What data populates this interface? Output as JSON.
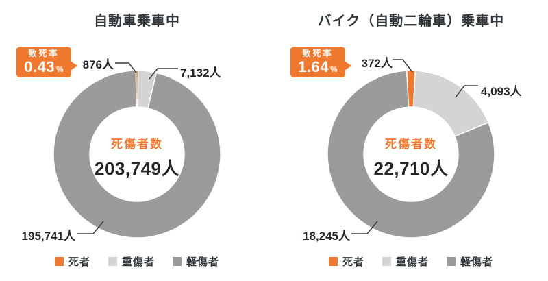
{
  "page": {
    "background": "#ffffff"
  },
  "colors": {
    "accent_orange": "#EF7A2F",
    "serious_gray": "#D4D4D4",
    "light_injury_gray": "#9B9B9B",
    "text_dark": "#33383D",
    "number_black": "#22262A"
  },
  "charts": [
    {
      "title": "自動車乗車中",
      "badge": {
        "label": "致死率",
        "rate": "0.43",
        "unit": "%"
      },
      "center": {
        "label": "死傷者数",
        "value": "203,749人"
      },
      "labels": [
        "876人",
        "7,132人",
        "195,741人"
      ],
      "legend": [
        {
          "label": "死者",
          "color": "#EF7A2F"
        },
        {
          "label": "重傷者",
          "color": "#D4D4D4"
        },
        {
          "label": "軽傷者",
          "color": "#9B9B9B"
        }
      ]
    },
    {
      "title": "バイク（自動二輪車）乗車中",
      "badge": {
        "label": "致死率",
        "rate": "1.64",
        "unit": "%"
      },
      "center": {
        "label": "死傷者数",
        "value": "22,710人"
      },
      "labels": [
        "372人",
        "4,093人",
        "18,245人"
      ],
      "legend": [
        {
          "label": "死者",
          "color": "#EF7A2F"
        },
        {
          "label": "重傷者",
          "color": "#D4D4D4"
        },
        {
          "label": "軽傷者",
          "color": "#9B9B9B"
        }
      ]
    }
  ],
  "chart_data": [
    {
      "type": "pie",
      "subtype": "donut",
      "title": "自動車乗車中",
      "categories": [
        "死者",
        "重傷者",
        "軽傷者"
      ],
      "values": [
        876,
        7132,
        195741
      ],
      "display_values": [
        "876人",
        "7,132人",
        "195,741人"
      ],
      "colors": [
        "#EF7A2F",
        "#D4D4D4",
        "#9B9B9B"
      ],
      "total": 203749,
      "total_label": "死傷者数",
      "total_display": "203,749人",
      "fatality_rate_percent": 0.43,
      "legend_position": "bottom",
      "start_rule": "death-slice-centered-at-top",
      "direction": "clockwise"
    },
    {
      "type": "pie",
      "subtype": "donut",
      "title": "バイク（自動二輪車）乗車中",
      "categories": [
        "死者",
        "重傷者",
        "軽傷者"
      ],
      "values": [
        372,
        4093,
        18245
      ],
      "display_values": [
        "372人",
        "4,093人",
        "18,245人"
      ],
      "colors": [
        "#EF7A2F",
        "#D4D4D4",
        "#9B9B9B"
      ],
      "total": 22710,
      "total_label": "死傷者数",
      "total_display": "22,710人",
      "fatality_rate_percent": 1.64,
      "legend_position": "bottom",
      "start_rule": "death-slice-centered-at-top",
      "direction": "clockwise"
    }
  ]
}
